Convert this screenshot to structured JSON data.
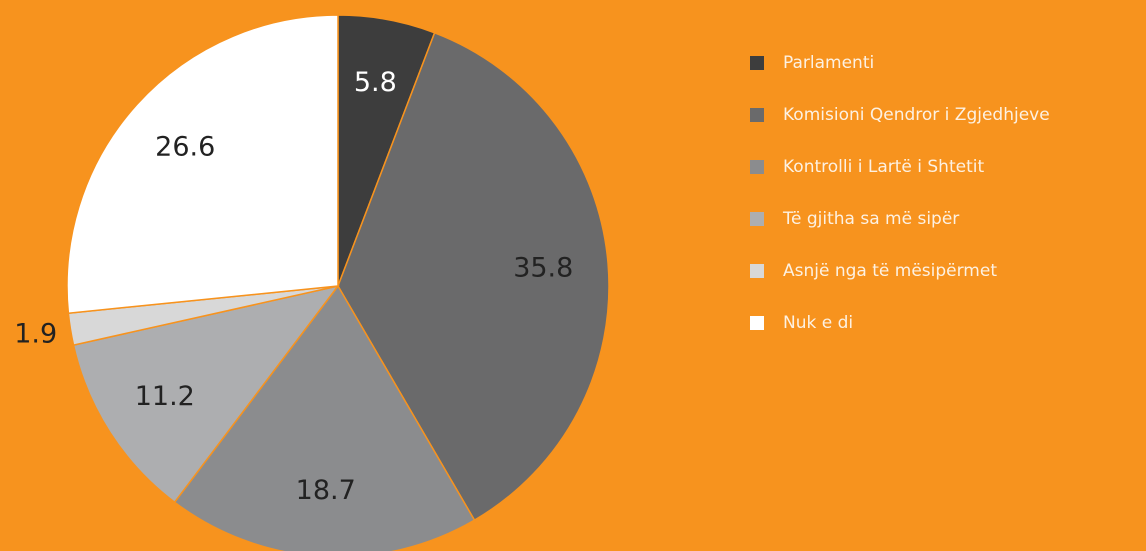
{
  "chart_data": {
    "type": "pie",
    "categories": [
      "Parlamenti",
      "Komisioni Qendror i Zgjedhjeve",
      "Kontrolli i Lartë i Shtetit",
      "Të gjitha sa më sipër",
      "Asnjë nga të mësipërmet",
      "Nuk e di"
    ],
    "values": [
      5.8,
      35.8,
      18.7,
      11.2,
      1.9,
      26.6
    ],
    "colors": [
      "#3d3d3d",
      "#6a6a6b",
      "#8b8c8e",
      "#adaeb0",
      "#d8d8d8",
      "#ffffff"
    ],
    "legend": "right"
  }
}
